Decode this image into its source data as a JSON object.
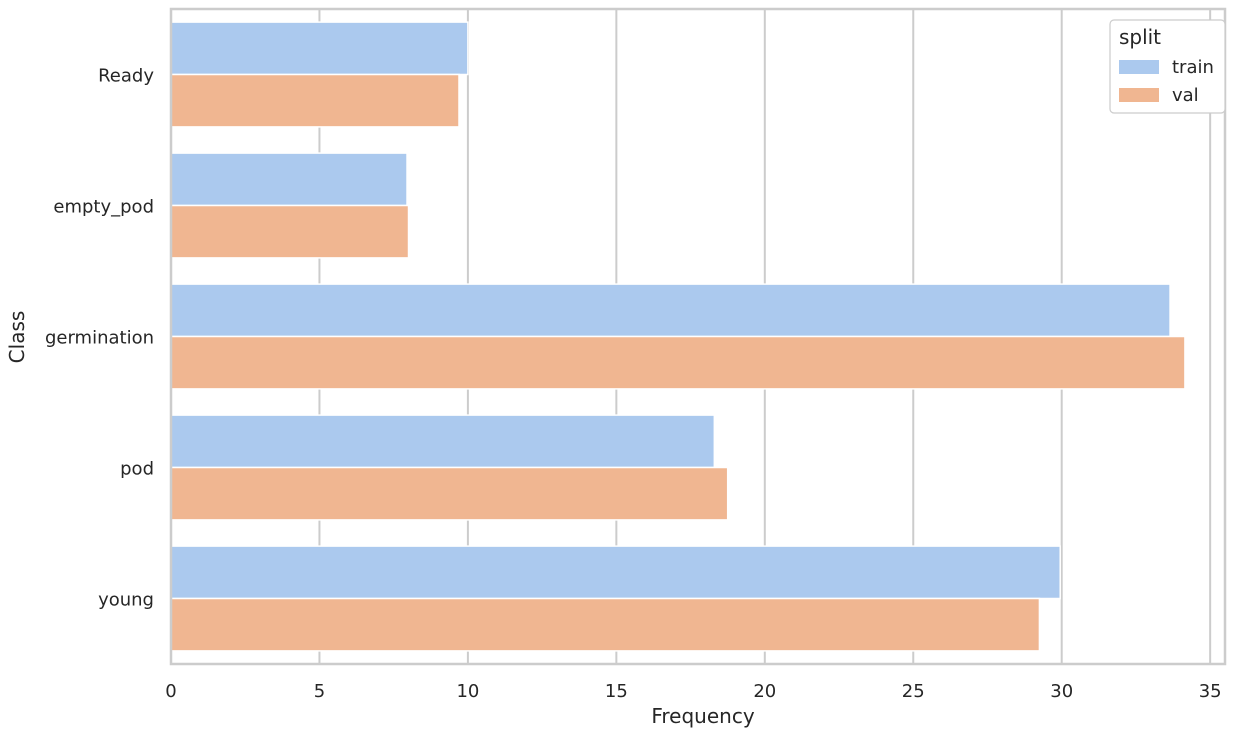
{
  "chart_data": {
    "type": "bar",
    "orientation": "horizontal",
    "categories": [
      "Ready",
      "empty_pod",
      "germination",
      "pod",
      "young"
    ],
    "series": [
      {
        "name": "train",
        "values": [
          10.0,
          7.95,
          33.65,
          18.3,
          29.95
        ],
        "color": "#abc9ee"
      },
      {
        "name": "val",
        "values": [
          9.7,
          8.0,
          34.15,
          18.75,
          29.25
        ],
        "color": "#f0b691"
      }
    ],
    "xlabel": "Frequency",
    "ylabel": "Class",
    "xlim": [
      0,
      35.5
    ],
    "xticks": [
      "0",
      "5",
      "10",
      "15",
      "20",
      "25",
      "30",
      "35"
    ],
    "grid": "vertical",
    "legend": {
      "title": "split",
      "position": "top-right"
    }
  }
}
